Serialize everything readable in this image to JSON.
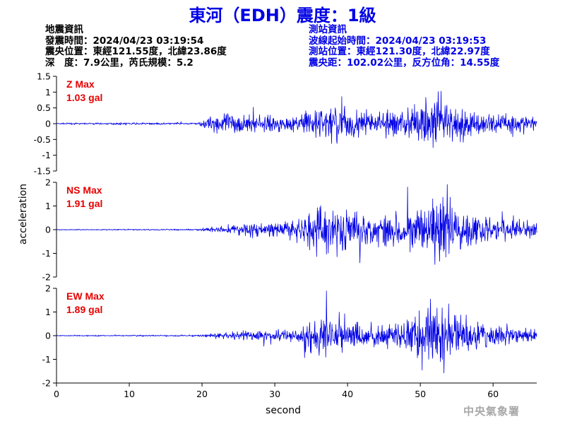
{
  "title": "東河（EDH）震度：1級",
  "quake_info": {
    "heading": "地震資訊",
    "time": "發震時間：2024/04/23 03:19:54",
    "epicenter": "震央位置：東經121.55度，北緯23.86度",
    "depth_magnitude": "深　度：7.9公里，芮氏規模：5.2"
  },
  "station_info": {
    "heading": "測站資訊",
    "wave_start": "波線起始時間：2024/04/23 03:19:53",
    "location": "測站位置：東經121.30度，北緯22.97度",
    "distance_azimuth": "震央距：102.02公里，反方位角：14.55度"
  },
  "watermark": "中央氣象署",
  "colors": {
    "trace": "#0000e6",
    "max_label": "#e60000",
    "axis": "#000000",
    "title": "#0000e6"
  },
  "chart_data": {
    "type": "line",
    "xlabel": "second",
    "ylabel": "acceleration",
    "xlim": [
      0,
      66
    ],
    "xticks": [
      "0",
      "10",
      "20",
      "30",
      "40",
      "50",
      "60"
    ],
    "grid": false,
    "panels": [
      {
        "name": "Z",
        "max_label": "Z Max",
        "max_value": "1.03 gal",
        "peak": 1.03,
        "ylim": [
          -1.5,
          1.5
        ],
        "yticks": [
          "1.5",
          "1",
          "0.5",
          "0",
          "-0.5",
          "-1",
          "-1.5"
        ],
        "envelope_t": [
          0,
          19.5,
          21,
          23,
          26,
          29,
          33,
          36,
          38,
          41,
          44,
          47,
          49,
          51,
          52.5,
          53.5,
          55,
          57,
          60,
          63,
          66
        ],
        "envelope_a": [
          0.02,
          0.03,
          0.2,
          0.3,
          0.26,
          0.2,
          0.2,
          0.45,
          0.55,
          0.42,
          0.3,
          0.38,
          0.42,
          0.65,
          0.9,
          0.7,
          0.38,
          0.35,
          0.32,
          0.25,
          0.2
        ]
      },
      {
        "name": "NS",
        "max_label": "NS Max",
        "max_value": "1.91 gal",
        "peak": 1.91,
        "ylim": [
          -2,
          2
        ],
        "yticks": [
          "2",
          "1",
          "0",
          "-1",
          "-2"
        ],
        "envelope_t": [
          0,
          19,
          21,
          25,
          29,
          33,
          35,
          37,
          39,
          42,
          44,
          47,
          50,
          52,
          53,
          54.5,
          56,
          58,
          60,
          63,
          66
        ],
        "envelope_a": [
          0.02,
          0.03,
          0.1,
          0.25,
          0.35,
          0.5,
          0.85,
          1.2,
          1.1,
          0.8,
          0.75,
          0.7,
          1.0,
          1.4,
          1.8,
          1.2,
          0.9,
          0.7,
          0.55,
          0.45,
          0.35
        ]
      },
      {
        "name": "EW",
        "max_label": "EW Max",
        "max_value": "1.89 gal",
        "peak": 1.89,
        "ylim": [
          -2,
          2
        ],
        "yticks": [
          "2",
          "1",
          "0",
          "-1",
          "-2"
        ],
        "envelope_t": [
          0,
          19.5,
          21,
          25,
          29,
          33,
          35,
          37,
          39,
          42,
          45,
          48,
          50,
          51.5,
          53,
          54.5,
          56,
          58,
          61,
          63,
          66
        ],
        "envelope_a": [
          0.02,
          0.03,
          0.08,
          0.18,
          0.22,
          0.35,
          0.7,
          0.95,
          0.8,
          0.55,
          0.5,
          0.65,
          1.1,
          1.5,
          1.3,
          0.9,
          0.7,
          0.55,
          0.45,
          0.35,
          0.25
        ]
      }
    ]
  }
}
